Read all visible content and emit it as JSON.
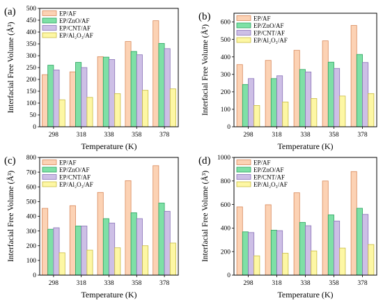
{
  "figure": {
    "panels": [
      "(a)",
      "(b)",
      "(c)",
      "(d)"
    ]
  },
  "chart_data": [
    {
      "panel": "(a)",
      "type": "bar",
      "categories": [
        "298",
        "318",
        "338",
        "358",
        "378"
      ],
      "series": [
        {
          "name": "EP/AF",
          "values": [
            220,
            232,
            296,
            360,
            448
          ]
        },
        {
          "name": "EP/ZnO/AF",
          "values": [
            260,
            272,
            294,
            318,
            352
          ]
        },
        {
          "name": "EP/CNT/AF",
          "values": [
            240,
            250,
            284,
            304,
            330
          ]
        },
        {
          "name": "EP/Al₂O₃/AF",
          "values": [
            114,
            124,
            140,
            154,
            160
          ]
        }
      ],
      "xlabel": "Temperature (K)",
      "ylabel": "Interfacial Free Volume (Å³)",
      "ylim": [
        0,
        500
      ],
      "yticks": [
        0,
        50,
        100,
        150,
        200,
        250,
        300,
        350,
        400,
        450,
        500
      ],
      "legend_position": "top-left",
      "grid": false
    },
    {
      "panel": "(b)",
      "type": "bar",
      "categories": [
        "298",
        "318",
        "338",
        "358",
        "378"
      ],
      "series": [
        {
          "name": "EP/AF",
          "values": [
            356,
            380,
            438,
            492,
            580
          ]
        },
        {
          "name": "EP/ZnO/AF",
          "values": [
            242,
            276,
            328,
            370,
            414
          ]
        },
        {
          "name": "EP/CNT/AF",
          "values": [
            276,
            292,
            314,
            334,
            368
          ]
        },
        {
          "name": "EP/Al₂O₃/AF",
          "values": [
            122,
            142,
            162,
            176,
            190
          ]
        }
      ],
      "xlabel": "Temperature (K)",
      "ylabel": "Interfacial Free Volume (Å³)",
      "ylim": [
        0,
        650
      ],
      "yticks": [
        0,
        100,
        200,
        300,
        400,
        500,
        600
      ],
      "legend_position": "top-left",
      "grid": false
    },
    {
      "panel": "(c)",
      "type": "bar",
      "categories": [
        "298",
        "318",
        "338",
        "358",
        "378"
      ],
      "series": [
        {
          "name": "EP/AF",
          "values": [
            454,
            472,
            562,
            642,
            744
          ]
        },
        {
          "name": "EP/ZnO/AF",
          "values": [
            312,
            334,
            384,
            424,
            490
          ]
        },
        {
          "name": "EP/CNT/AF",
          "values": [
            322,
            334,
            354,
            384,
            434
          ]
        },
        {
          "name": "EP/Al₂O₃/AF",
          "values": [
            152,
            170,
            186,
            200,
            218
          ]
        }
      ],
      "xlabel": "Temperature (K)",
      "ylabel": "Interfacial Free Volume (Å³)",
      "ylim": [
        0,
        800
      ],
      "yticks": [
        0,
        100,
        200,
        300,
        400,
        500,
        600,
        700,
        800
      ],
      "legend_position": "top-left",
      "grid": false
    },
    {
      "panel": "(d)",
      "type": "bar",
      "categories": [
        "298",
        "318",
        "338",
        "358",
        "378"
      ],
      "series": [
        {
          "name": "EP/AF",
          "values": [
            580,
            598,
            700,
            800,
            880
          ]
        },
        {
          "name": "EP/ZnO/AF",
          "values": [
            368,
            382,
            448,
            512,
            568
          ]
        },
        {
          "name": "EP/CNT/AF",
          "values": [
            362,
            378,
            420,
            460,
            516
          ]
        },
        {
          "name": "EP/Al₂O₃/AF",
          "values": [
            164,
            186,
            206,
            230,
            260
          ]
        }
      ],
      "xlabel": "Temperature (K)",
      "ylabel": "Interfacial Free Volume (Å³)",
      "ylim": [
        0,
        1000
      ],
      "yticks": [
        0,
        200,
        400,
        600,
        800,
        1000
      ],
      "legend_position": "top-left",
      "grid": false
    }
  ],
  "colors": {
    "series_fill": [
      "#fcd2b4",
      "#7ee0a6",
      "#cdbfe6",
      "#fdf7a4"
    ],
    "series_stroke": [
      "#d8885a",
      "#29a35e",
      "#8a74b8",
      "#c9bb42"
    ],
    "axis": "#000000"
  }
}
